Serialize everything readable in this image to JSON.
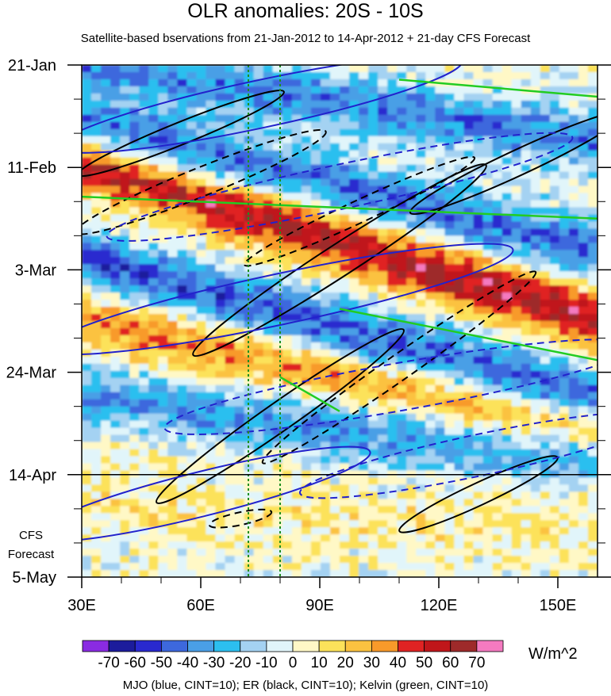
{
  "chart_data": {
    "type": "heatmap",
    "title": "OLR anomalies: 20S - 10S",
    "subtitle": "Satellite-based bservations from 21-Jan-2012 to 14-Apr-2012 + 21-day CFS Forecast",
    "x_ticks": [
      "30E",
      "60E",
      "90E",
      "120E",
      "150E"
    ],
    "x_tick_values": [
      30,
      60,
      90,
      120,
      150
    ],
    "xlim": [
      30,
      160
    ],
    "y_ticks": [
      "21-Jan",
      "11-Feb",
      "3-Mar",
      "24-Mar",
      "14-Apr",
      "5-May"
    ],
    "y_tick_days": [
      0,
      21,
      42,
      63,
      84,
      105
    ],
    "ylim_days": [
      0,
      105
    ],
    "forecast_start_label": "14-Apr",
    "forecast_note": "CFS\nForecast",
    "vertical_reference_lines": [
      72,
      80
    ],
    "colorbar": {
      "labels": [
        "-70",
        "-60",
        "-50",
        "-40",
        "-30",
        "-20",
        "-10",
        "0",
        "10",
        "20",
        "30",
        "40",
        "50",
        "60",
        "70"
      ],
      "colors": [
        "#8a2be2",
        "#1c1c9c",
        "#2929cf",
        "#3d68dd",
        "#4a9fe6",
        "#2cbfef",
        "#a4d2f2",
        "#e1f5fa",
        "#fff8c6",
        "#fce25a",
        "#fbc240",
        "#f89a2a",
        "#e02323",
        "#c0161a",
        "#9e2a2a",
        "#f47ac0"
      ],
      "units": "W/m^2"
    },
    "contours_legend": "MJO (blue, CINT=10); ER (black, CINT=10); Kelvin (green, CINT=10)",
    "series_colors": {
      "mjo": "#2222cc",
      "er": "#000000",
      "kelvin": "#22cc22"
    }
  }
}
